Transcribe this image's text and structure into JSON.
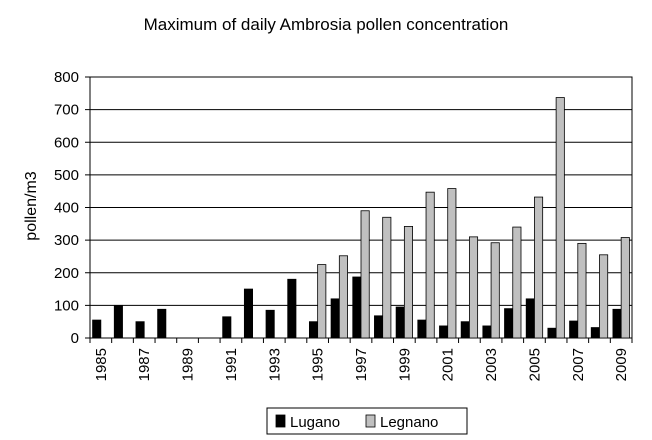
{
  "chart_data": {
    "type": "bar",
    "title": "Maximum of daily Ambrosia pollen concentration",
    "xlabel": "",
    "ylabel": "pollen/m3",
    "ylim": [
      0,
      800
    ],
    "yticks": [
      "0",
      "100",
      "200",
      "300",
      "400",
      "500",
      "600",
      "700",
      "800"
    ],
    "grid": true,
    "legend_position": "bottom",
    "categories": [
      "1985",
      "1986",
      "1987",
      "1988",
      "1989",
      "1990",
      "1991",
      "1992",
      "1993",
      "1994",
      "1995",
      "1996",
      "1997",
      "1998",
      "1999",
      "2000",
      "2001",
      "2002",
      "2003",
      "2004",
      "2005",
      "2006",
      "2007",
      "2008",
      "2009"
    ],
    "xtick_labels": [
      "1985",
      "",
      "1987",
      "",
      "1989",
      "",
      "1991",
      "",
      "1993",
      "",
      "1995",
      "",
      "1997",
      "",
      "1999",
      "",
      "2001",
      "",
      "2003",
      "",
      "2005",
      "",
      "2007",
      "",
      "2009"
    ],
    "series": [
      {
        "name": "Lugano",
        "color": "#000000",
        "values": [
          55,
          100,
          50,
          88,
          null,
          null,
          65,
          150,
          85,
          180,
          50,
          120,
          187,
          68,
          95,
          55,
          37,
          50,
          37,
          90,
          120,
          30,
          52,
          32,
          88
        ]
      },
      {
        "name": "Legnano",
        "color": "#c0c0c0",
        "values": [
          null,
          null,
          null,
          null,
          null,
          null,
          null,
          null,
          null,
          null,
          225,
          252,
          390,
          370,
          342,
          447,
          458,
          310,
          292,
          340,
          432,
          737,
          290,
          255,
          308
        ]
      }
    ]
  }
}
